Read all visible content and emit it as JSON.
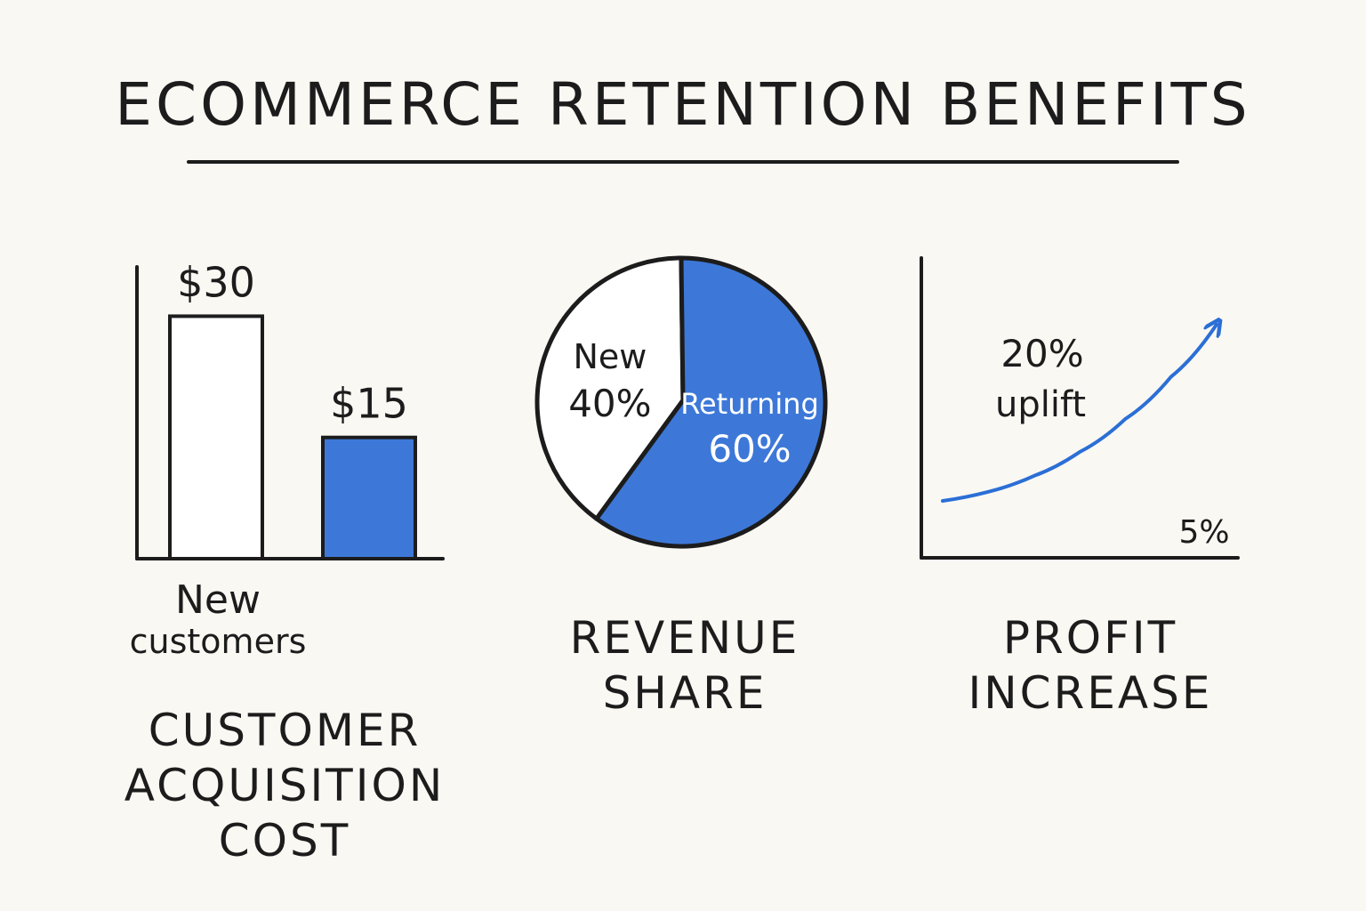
{
  "title": "ECOMMERCE RETENTION BENEFITS",
  "colors": {
    "accent": "#3d78d8",
    "ink": "#1c1c1c",
    "background": "#faf8f3",
    "white": "#ffffff"
  },
  "chart_data": [
    {
      "type": "bar",
      "title": "CUSTOMER\nACQUISITION\nCOST",
      "categories": [
        "New customers",
        ""
      ],
      "category_label_line1": "New",
      "category_label_line2": "customers",
      "values": [
        30,
        15
      ],
      "value_labels": [
        "$30",
        "$15"
      ],
      "ylim": [
        0,
        35
      ],
      "fills": [
        "#ffffff",
        "#3d78d8"
      ],
      "grid": false
    },
    {
      "type": "pie",
      "title": "REVENUE\nSHARE",
      "slices": [
        {
          "name": "New",
          "value": 40,
          "label": "40%",
          "color": "#ffffff"
        },
        {
          "name": "Returning",
          "value": 60,
          "label": "60%",
          "color": "#3d78d8"
        }
      ]
    },
    {
      "type": "line",
      "title": "PROFIT\nINCREASE",
      "series": [
        {
          "x": [
            0,
            1,
            2,
            3,
            4,
            5,
            6
          ],
          "y": [
            5,
            5.8,
            7.2,
            9.3,
            12.2,
            15.9,
            20.5
          ]
        }
      ],
      "start_label": "5%",
      "end_label_line1": "20%",
      "end_label_line2": "uplift",
      "ylim": [
        0,
        24
      ],
      "xlim": [
        0,
        6
      ],
      "grid": false
    }
  ]
}
